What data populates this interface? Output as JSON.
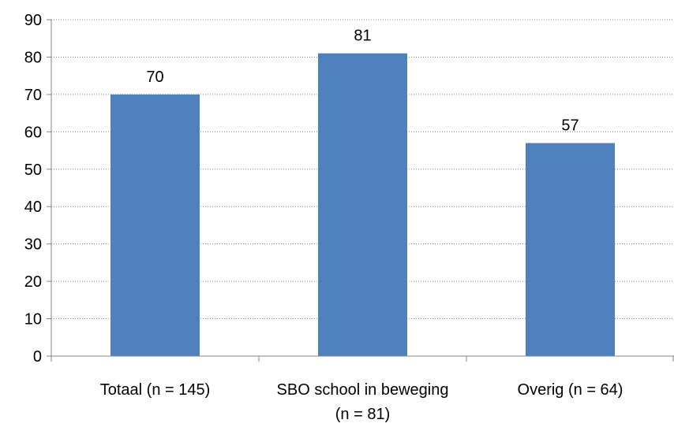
{
  "chart_data": {
    "type": "bar",
    "title": "",
    "xlabel": "",
    "ylabel": "",
    "categories": [
      [
        "Totaal (n = 145)"
      ],
      [
        "SBO school in beweging",
        "(n = 81)"
      ],
      [
        "Overig (n = 64)"
      ]
    ],
    "values": [
      70,
      81,
      57
    ],
    "data_labels": [
      "70",
      "81",
      "57"
    ],
    "ylim": [
      0,
      90
    ],
    "yticks": [
      0,
      10,
      20,
      30,
      40,
      50,
      60,
      70,
      80,
      90
    ],
    "grid": true,
    "grid_style": "dotted",
    "legend": "none",
    "colors": {
      "bar": "#4f81bd",
      "axis": "#868686",
      "grid": "#868686",
      "text": "#000000"
    }
  }
}
